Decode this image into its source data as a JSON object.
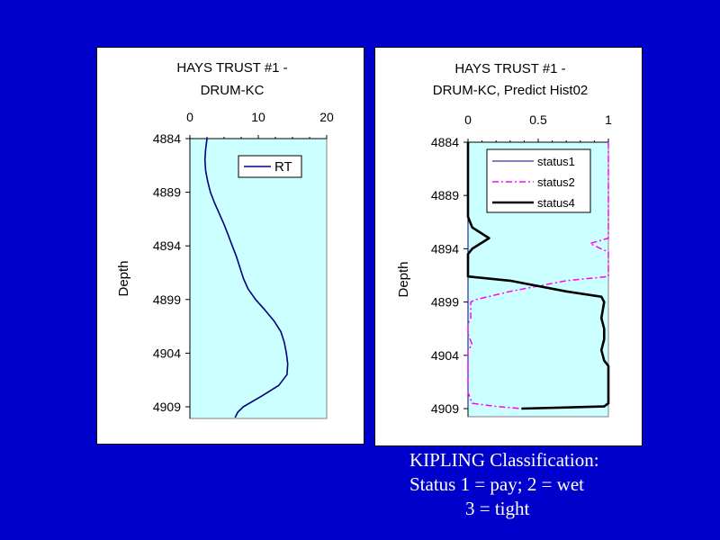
{
  "colors": {
    "background": "#0000cc",
    "plot_area": "#ccffff",
    "rt_line": "#000080",
    "status1": "#000080",
    "status2": "#ff00ff",
    "status4": "#000000"
  },
  "caption": {
    "line1": "KIPLING Classification:",
    "line2": "Status 1 = pay; 2 = wet",
    "line3": "3 = tight"
  },
  "chart_data": [
    {
      "type": "line",
      "title_line1": "HAYS TRUST #1 -",
      "title_line2": "DRUM-KC",
      "ylabel": "Depth",
      "xlabel": "",
      "orientation": "depth-down",
      "xlim": [
        0,
        20
      ],
      "x_ticks": [
        "0",
        "10",
        "20"
      ],
      "ylim": [
        4884,
        4910
      ],
      "y_ticks": [
        "4884",
        "4889",
        "4894",
        "4899",
        "4904",
        "4909"
      ],
      "legend_position": "top-right",
      "grid": false,
      "series": [
        {
          "name": "RT",
          "points": [
            [
              2.5,
              4884
            ],
            [
              2.3,
              4885
            ],
            [
              2.2,
              4886
            ],
            [
              2.3,
              4887
            ],
            [
              2.6,
              4888
            ],
            [
              3.0,
              4889
            ],
            [
              3.6,
              4890
            ],
            [
              4.3,
              4891
            ],
            [
              5.0,
              4892
            ],
            [
              5.6,
              4893
            ],
            [
              6.2,
              4894
            ],
            [
              6.8,
              4895
            ],
            [
              7.3,
              4896
            ],
            [
              7.8,
              4897
            ],
            [
              8.5,
              4898
            ],
            [
              9.6,
              4899
            ],
            [
              11.0,
              4900
            ],
            [
              12.3,
              4901
            ],
            [
              13.3,
              4902
            ],
            [
              13.8,
              4903
            ],
            [
              14.1,
              4904
            ],
            [
              14.3,
              4905
            ],
            [
              14.2,
              4906
            ],
            [
              13.0,
              4907
            ],
            [
              10.5,
              4908
            ],
            [
              7.8,
              4909
            ],
            [
              7.0,
              4909.5
            ],
            [
              6.6,
              4910
            ]
          ]
        }
      ]
    },
    {
      "type": "line",
      "title_line1": "HAYS TRUST #1 -",
      "title_line2": "DRUM-KC, Predict Hist02",
      "ylabel": "Depth",
      "xlabel": "",
      "orientation": "depth-down",
      "xlim": [
        0,
        1
      ],
      "x_ticks": [
        "0",
        "0.5",
        "1"
      ],
      "ylim": [
        4884,
        4909
      ],
      "y_ticks": [
        "4884",
        "4889",
        "4894",
        "4899",
        "4904",
        "4909"
      ],
      "legend_position": "top-right",
      "grid": false,
      "series": [
        {
          "name": "status1",
          "points": [
            [
              0,
              4884
            ],
            [
              0,
              4909
            ]
          ]
        },
        {
          "name": "status2",
          "points": [
            [
              1,
              4884
            ],
            [
              1,
              4893
            ],
            [
              0.87,
              4893.5
            ],
            [
              0.93,
              4893.9
            ],
            [
              1,
              4894.3
            ],
            [
              1,
              4896.6
            ],
            [
              0.7,
              4897
            ],
            [
              0.3,
              4898
            ],
            [
              0.05,
              4898.8
            ],
            [
              0.02,
              4899
            ],
            [
              0.02,
              4900.5
            ],
            [
              0,
              4901
            ],
            [
              0,
              4902
            ],
            [
              0.03,
              4903
            ],
            [
              0,
              4903.5
            ],
            [
              0,
              4907.5
            ],
            [
              0.03,
              4908.5
            ],
            [
              0.2,
              4908.8
            ],
            [
              0.38,
              4909
            ]
          ]
        },
        {
          "name": "status4",
          "points": [
            [
              0,
              4884
            ],
            [
              0,
              4891
            ],
            [
              0.03,
              4892
            ],
            [
              0.15,
              4893
            ],
            [
              0.03,
              4894
            ],
            [
              0,
              4894.5
            ],
            [
              0,
              4896.6
            ],
            [
              0.3,
              4897
            ],
            [
              0.7,
              4898
            ],
            [
              0.95,
              4898.5
            ],
            [
              0.97,
              4899
            ],
            [
              0.95,
              4900.5
            ],
            [
              0.97,
              4901.5
            ],
            [
              0.97,
              4902.5
            ],
            [
              0.95,
              4903.5
            ],
            [
              0.97,
              4904.5
            ],
            [
              1,
              4905
            ],
            [
              1,
              4908.5
            ],
            [
              0.97,
              4908.8
            ],
            [
              0.38,
              4909
            ]
          ]
        }
      ]
    }
  ]
}
